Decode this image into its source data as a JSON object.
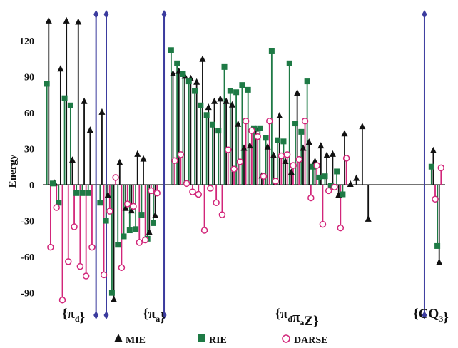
{
  "chart_data": {
    "type": "stem",
    "ylabel": "Energy",
    "ylim": [
      -100,
      140
    ],
    "yticks": [
      120,
      90,
      60,
      30,
      0,
      -30,
      -60,
      -90
    ],
    "colors": {
      "MIE": "#111111",
      "RIE": "#1e7a45",
      "DARSE": "#d2267a",
      "divider": "#3b3b9e"
    },
    "groups": [
      {
        "label_main": "{π",
        "label_sub": "d",
        "label_close": "}",
        "index_range": [
          1,
          8
        ]
      },
      {
        "label_main": "{π",
        "label_sub": "a",
        "label_close": "}",
        "index_range": [
          10,
          19
        ]
      },
      {
        "label_main": "{π",
        "label_sub": "d",
        "label_mid": "π",
        "label_sub2": "a",
        "label_tail": "Z}",
        "index_range": [
          22,
          62
        ]
      },
      {
        "label_main": "{CQ",
        "label_sub": "3",
        "label_close": "}",
        "index_range": [
          66,
          67
        ]
      }
    ],
    "dividers": [
      9,
      20.5,
      64.5
    ],
    "series": [
      {
        "name": "MIE",
        "marker": "triangle",
        "points": [
          [
            1,
            136
          ],
          [
            2,
            1
          ],
          [
            3,
            96
          ],
          [
            4,
            136
          ],
          [
            5,
            20
          ],
          [
            6,
            135
          ],
          [
            7,
            69
          ],
          [
            8,
            45
          ],
          [
            10,
            60
          ],
          [
            11,
            -9
          ],
          [
            12,
            -96
          ],
          [
            13,
            18
          ],
          [
            14,
            -20
          ],
          [
            15,
            -22
          ],
          [
            16,
            25
          ],
          [
            17,
            21
          ],
          [
            18,
            -40
          ],
          [
            19,
            -26
          ],
          [
            22,
            92
          ],
          [
            23,
            94
          ],
          [
            24,
            90
          ],
          [
            25,
            88
          ],
          [
            26,
            85
          ],
          [
            27,
            104
          ],
          [
            28,
            64
          ],
          [
            29,
            69
          ],
          [
            30,
            71
          ],
          [
            31,
            69
          ],
          [
            32,
            66
          ],
          [
            33,
            50
          ],
          [
            34,
            30
          ],
          [
            35,
            32
          ],
          [
            36,
            46
          ],
          [
            37,
            7
          ],
          [
            38,
            31
          ],
          [
            39,
            24
          ],
          [
            40,
            57
          ],
          [
            41,
            19
          ],
          [
            42,
            10
          ],
          [
            43,
            76
          ],
          [
            44,
            30
          ],
          [
            45,
            35
          ],
          [
            46,
            19
          ],
          [
            47,
            32
          ],
          [
            48,
            24
          ],
          [
            49,
            25
          ],
          [
            50,
            -9
          ],
          [
            51,
            42
          ],
          [
            52,
            0
          ],
          [
            53,
            5
          ],
          [
            54,
            48
          ],
          [
            55,
            -29
          ],
          [
            66,
            28
          ],
          [
            67,
            -65
          ]
        ]
      },
      {
        "name": "RIE",
        "marker": "square",
        "points": [
          [
            1,
            84
          ],
          [
            2,
            1
          ],
          [
            3,
            -15
          ],
          [
            4,
            72
          ],
          [
            5,
            66
          ],
          [
            6,
            -7
          ],
          [
            7,
            -7
          ],
          [
            8,
            -7
          ],
          [
            10,
            -15
          ],
          [
            11,
            -30
          ],
          [
            12,
            -90
          ],
          [
            13,
            -50
          ],
          [
            14,
            -43
          ],
          [
            15,
            -38
          ],
          [
            16,
            -37
          ],
          [
            17,
            -25
          ],
          [
            18,
            -45
          ],
          [
            19,
            -32
          ],
          [
            22,
            112
          ],
          [
            23,
            101
          ],
          [
            24,
            92
          ],
          [
            25,
            86
          ],
          [
            26,
            78
          ],
          [
            27,
            66
          ],
          [
            28,
            58
          ],
          [
            29,
            50
          ],
          [
            30,
            45
          ],
          [
            31,
            98
          ],
          [
            32,
            78
          ],
          [
            33,
            77
          ],
          [
            34,
            83
          ],
          [
            35,
            79
          ],
          [
            36,
            47
          ],
          [
            37,
            47
          ],
          [
            38,
            39
          ],
          [
            39,
            111
          ],
          [
            40,
            37
          ],
          [
            41,
            36
          ],
          [
            42,
            101
          ],
          [
            43,
            51
          ],
          [
            44,
            44
          ],
          [
            45,
            86
          ],
          [
            46,
            15
          ],
          [
            47,
            6
          ],
          [
            48,
            7
          ],
          [
            49,
            -1
          ],
          [
            50,
            11
          ],
          [
            51,
            -8
          ],
          [
            66,
            15
          ],
          [
            67,
            -51
          ]
        ]
      },
      {
        "name": "DARSE",
        "marker": "circle",
        "points": [
          [
            1,
            -52
          ],
          [
            2,
            -19
          ],
          [
            3,
            -96
          ],
          [
            4,
            -64
          ],
          [
            5,
            -35
          ],
          [
            6,
            -68
          ],
          [
            7,
            -76
          ],
          [
            8,
            -52
          ],
          [
            10,
            -75
          ],
          [
            11,
            -22
          ],
          [
            12,
            6
          ],
          [
            13,
            -69
          ],
          [
            14,
            -16
          ],
          [
            15,
            -18
          ],
          [
            16,
            -48
          ],
          [
            17,
            -46
          ],
          [
            18,
            -5
          ],
          [
            19,
            -7
          ],
          [
            22,
            20
          ],
          [
            23,
            25
          ],
          [
            24,
            1
          ],
          [
            25,
            -6
          ],
          [
            26,
            -8
          ],
          [
            27,
            -38
          ],
          [
            28,
            -3
          ],
          [
            29,
            -15
          ],
          [
            30,
            -25
          ],
          [
            31,
            29
          ],
          [
            32,
            13
          ],
          [
            33,
            19
          ],
          [
            34,
            53
          ],
          [
            35,
            45
          ],
          [
            36,
            40
          ],
          [
            37,
            7
          ],
          [
            38,
            53
          ],
          [
            39,
            3
          ],
          [
            40,
            24
          ],
          [
            41,
            25
          ],
          [
            42,
            16
          ],
          [
            43,
            21
          ],
          [
            44,
            53
          ],
          [
            45,
            -11
          ],
          [
            46,
            16
          ],
          [
            47,
            -33
          ],
          [
            48,
            -5
          ],
          [
            49,
            -2
          ],
          [
            50,
            -36
          ],
          [
            51,
            22
          ],
          [
            66,
            -12
          ],
          [
            67,
            14
          ]
        ]
      }
    ]
  },
  "legend": [
    {
      "label": "MIE"
    },
    {
      "label": "RIE"
    },
    {
      "label": "DARSE"
    }
  ]
}
